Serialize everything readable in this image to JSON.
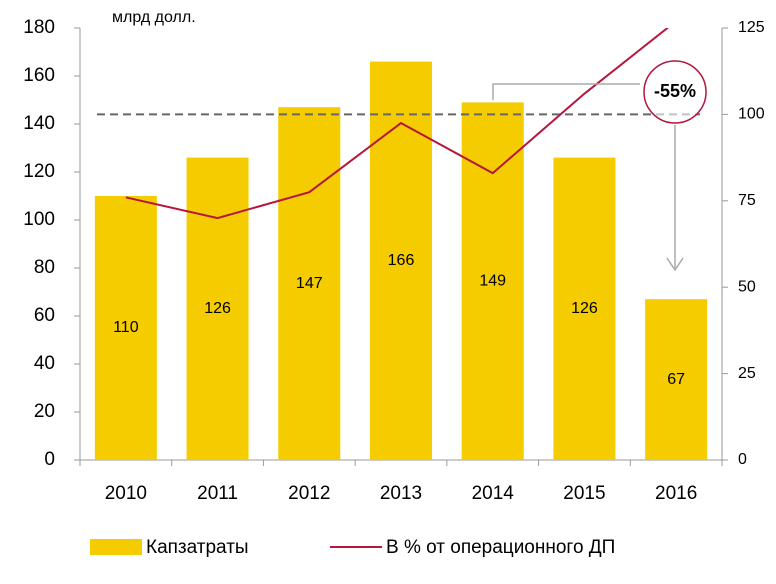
{
  "chart_data": {
    "type": "bar",
    "unit_label": "млрд долл.",
    "categories": [
      "2010",
      "2011",
      "2012",
      "2013",
      "2014",
      "2015",
      "2016"
    ],
    "series": [
      {
        "name": "Капзатраты",
        "type": "bar",
        "color": "#f4cc00",
        "values": [
          110,
          126,
          147,
          166,
          149,
          126,
          67
        ]
      },
      {
        "name": "В % от операционного ДП",
        "type": "line",
        "axis": "y2",
        "color": "#b5163c",
        "values": [
          76,
          70,
          77.5,
          97.5,
          83,
          106,
          127
        ]
      }
    ],
    "ylim": [
      0,
      180
    ],
    "yticks": [
      0,
      20,
      40,
      60,
      80,
      100,
      120,
      140,
      160,
      180
    ],
    "y2lim": [
      0,
      125
    ],
    "y2ticks": [
      0,
      25,
      50,
      75,
      100,
      125
    ],
    "reference_line": 144,
    "annotation": "-55%"
  }
}
